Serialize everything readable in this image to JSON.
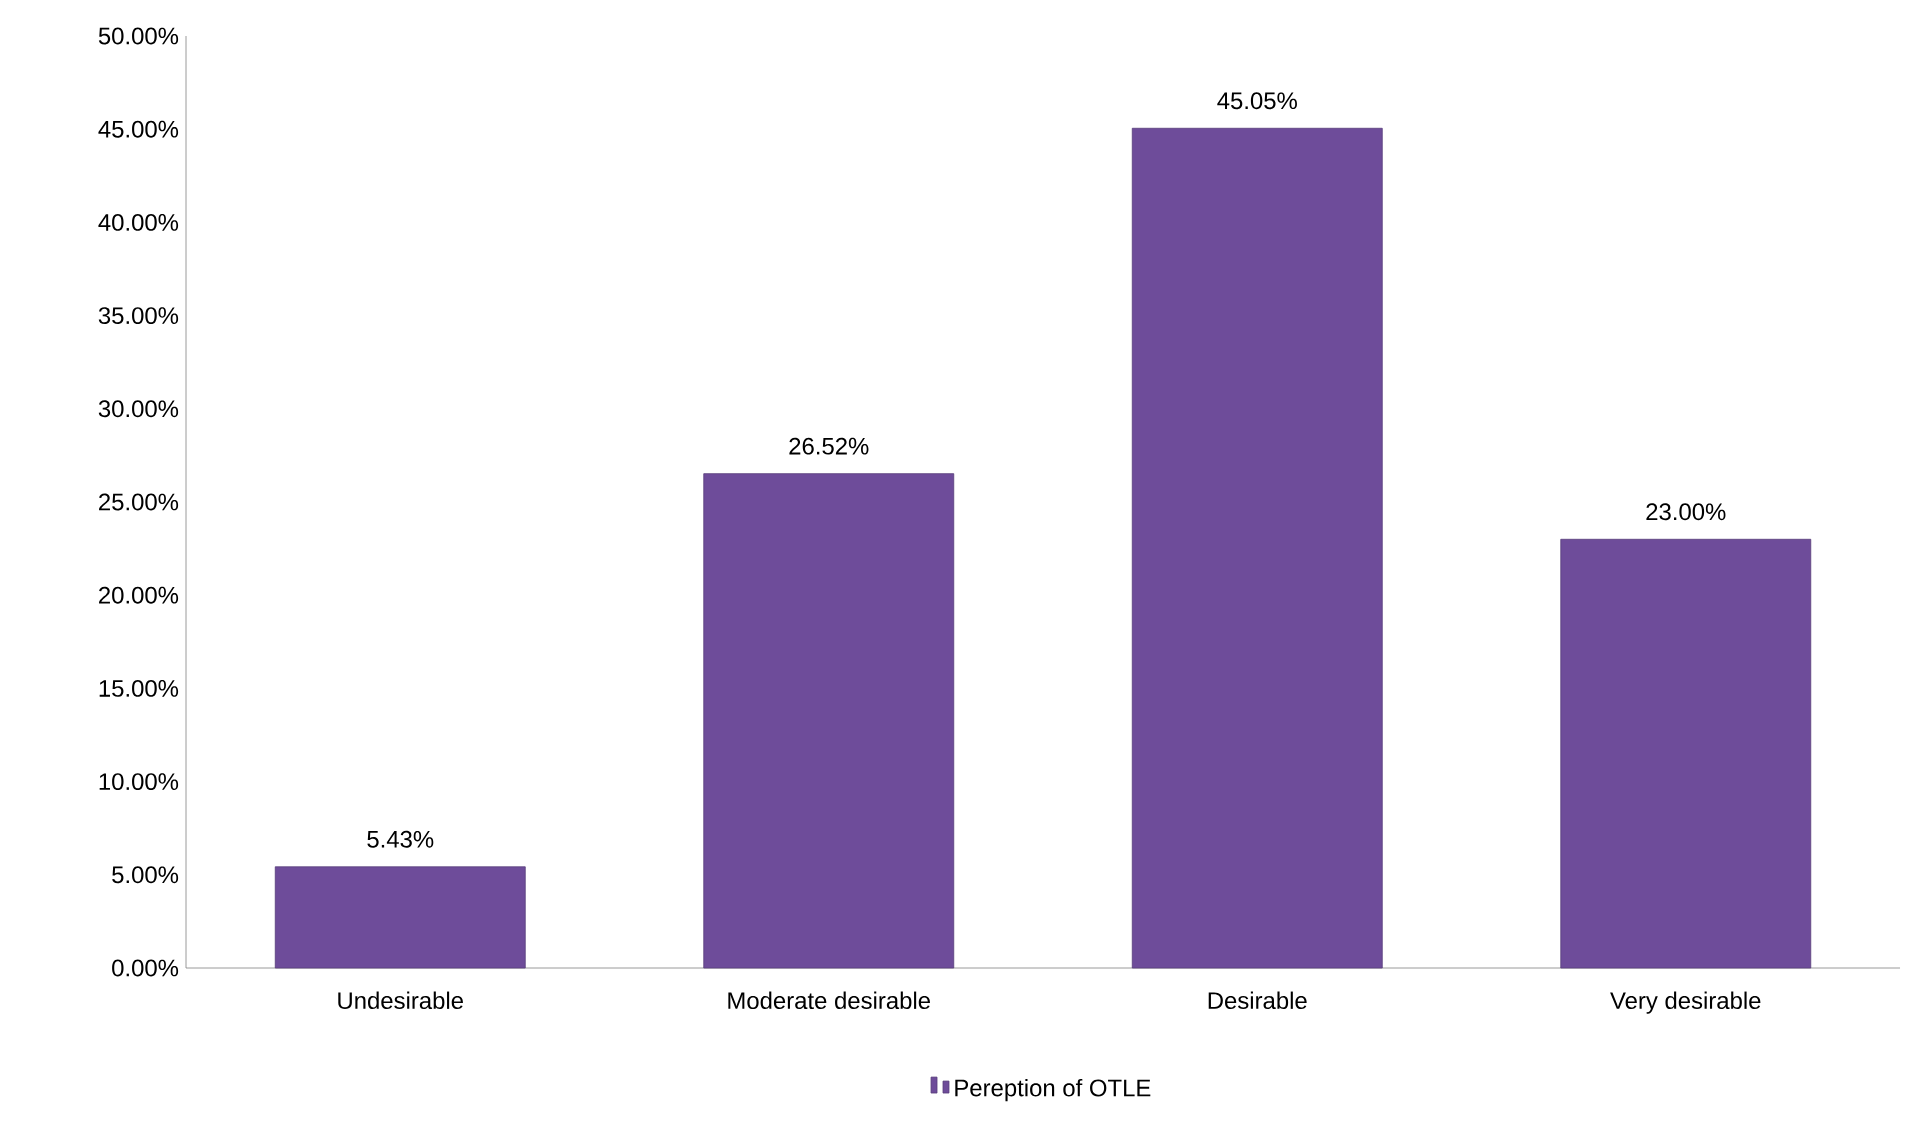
{
  "chart_data": {
    "type": "bar",
    "categories": [
      "Undesirable",
      "Moderate desirable",
      "Desirable",
      "Very desirable"
    ],
    "series": [
      {
        "name": "Pereption of OTLE",
        "color": "#6e4c9a",
        "values": [
          5.43,
          26.52,
          45.05,
          23.0
        ],
        "value_labels": [
          "5.43%",
          "26.52%",
          "45.05%",
          "23.00%"
        ]
      }
    ],
    "ylim": [
      0,
      50
    ],
    "yticks": [
      {
        "value": 0,
        "label": "0.00%"
      },
      {
        "value": 5,
        "label": "5.00%"
      },
      {
        "value": 10,
        "label": "10.00%"
      },
      {
        "value": 15,
        "label": "15.00%"
      },
      {
        "value": 20,
        "label": "20.00%"
      },
      {
        "value": 25,
        "label": "25.00%"
      },
      {
        "value": 30,
        "label": "30.00%"
      },
      {
        "value": 35,
        "label": "35.00%"
      },
      {
        "value": 40,
        "label": "40.00%"
      },
      {
        "value": 45,
        "label": "45.00%"
      },
      {
        "value": 50,
        "label": "50.00%"
      }
    ],
    "legend": "bottom"
  }
}
